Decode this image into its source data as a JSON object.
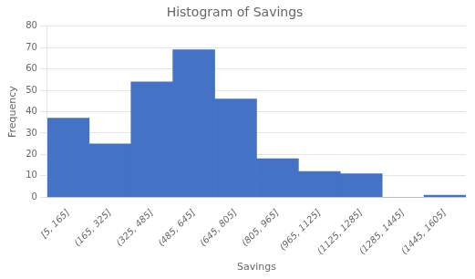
{
  "chart_data": {
    "type": "bar",
    "title": "Histogram of Savings",
    "xlabel": "Savings",
    "ylabel": "Frequency",
    "categories": [
      "[5, 165]",
      "(165, 325]",
      "(325, 485]",
      "(485, 645]",
      "(645, 805]",
      "(805, 965]",
      "(965, 1125]",
      "(1125, 1285]",
      "(1285, 1445]",
      "(1445, 1605]"
    ],
    "values": [
      37,
      25,
      54,
      69,
      46,
      18,
      12,
      11,
      0,
      1
    ],
    "color": "#4472C4",
    "ylim": [
      0,
      80
    ],
    "yticks": [
      0,
      10,
      20,
      30,
      40,
      50,
      60,
      70,
      80
    ],
    "grid": "y"
  }
}
